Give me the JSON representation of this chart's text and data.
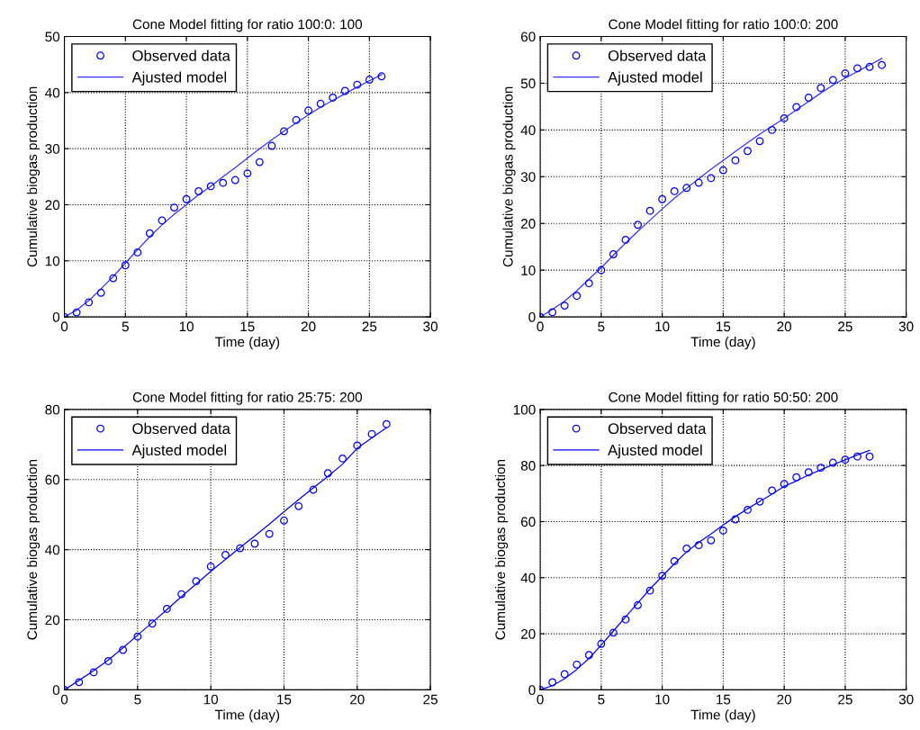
{
  "chart_data": [
    {
      "type": "scatter",
      "title": "Cone Model fitting for ratio 100:0: 100",
      "xlabel": "Time (day)",
      "ylabel": "Cumulative biogas production",
      "xlim": [
        0,
        30
      ],
      "xticks": [
        0,
        5,
        10,
        15,
        20,
        25,
        30
      ],
      "ylim": [
        0,
        50
      ],
      "yticks": [
        0,
        10,
        20,
        30,
        40,
        50
      ],
      "grid": true,
      "legend": "top left",
      "series": [
        {
          "name": "Observed data",
          "marker": "circle",
          "color": "#0000ff",
          "x": [
            0,
            1,
            2,
            3,
            4,
            5,
            6,
            7,
            8,
            9,
            10,
            11,
            12,
            13,
            14,
            15,
            16,
            17,
            18,
            19,
            20,
            21,
            22,
            23,
            24,
            25,
            26
          ],
          "values": [
            0,
            0.8,
            2.6,
            4.3,
            6.9,
            9.2,
            11.5,
            14.9,
            17.2,
            19.5,
            21.0,
            22.4,
            23.3,
            23.9,
            24.4,
            25.6,
            27.6,
            30.5,
            33.1,
            35.1,
            36.8,
            38.0,
            39.1,
            40.3,
            41.4,
            42.3,
            42.9
          ]
        },
        {
          "name": "Ajusted model",
          "type": "line",
          "line_style": "solid",
          "color": "#3333ff",
          "x": [
            0,
            1,
            2,
            3,
            4,
            5,
            6,
            7,
            8,
            9,
            10,
            11,
            12,
            13,
            14,
            15,
            16,
            17,
            18,
            19,
            20,
            21,
            22,
            23,
            24,
            25,
            26
          ],
          "values": [
            0,
            1.2,
            2.9,
            5.0,
            7.2,
            9.6,
            12.0,
            14.3,
            16.4,
            18.3,
            20.0,
            21.8,
            23.3,
            25.0,
            26.6,
            28.3,
            30.0,
            31.6,
            33.1,
            34.6,
            36.0,
            37.4,
            38.6,
            39.8,
            41.0,
            42.1,
            43.2
          ]
        }
      ]
    },
    {
      "type": "scatter",
      "title": "Cone Model fitting for ratio 100:0: 200",
      "xlabel": "Time (day)",
      "ylabel": "Cumulative biogas production",
      "xlim": [
        0,
        30
      ],
      "xticks": [
        0,
        5,
        10,
        15,
        20,
        25,
        30
      ],
      "ylim": [
        0,
        60
      ],
      "yticks": [
        0,
        10,
        20,
        30,
        40,
        50,
        60
      ],
      "grid": true,
      "legend": "top left",
      "series": [
        {
          "name": "Observed data",
          "marker": "circle",
          "color": "#0000ff",
          "x": [
            0,
            1,
            2,
            3,
            4,
            5,
            6,
            7,
            8,
            9,
            10,
            11,
            12,
            13,
            14,
            15,
            16,
            17,
            18,
            19,
            20,
            21,
            22,
            23,
            24,
            25,
            26,
            27,
            28
          ],
          "values": [
            0,
            1.0,
            2.4,
            4.5,
            7.2,
            10.0,
            13.4,
            16.5,
            19.7,
            22.7,
            25.2,
            26.9,
            27.6,
            28.7,
            29.7,
            31.4,
            33.5,
            35.5,
            37.6,
            40.0,
            42.5,
            44.9,
            46.9,
            49.0,
            50.7,
            52.1,
            53.2,
            53.5,
            53.9
          ]
        },
        {
          "name": "Ajusted model",
          "type": "line",
          "line_style": "solid",
          "color": "#3333ff",
          "x": [
            0,
            1,
            2,
            3,
            4,
            5,
            6,
            7,
            8,
            9,
            10,
            11,
            12,
            13,
            14,
            15,
            16,
            17,
            18,
            19,
            20,
            21,
            22,
            23,
            24,
            25,
            26,
            27,
            28
          ],
          "values": [
            0,
            1.6,
            3.4,
            5.6,
            8.1,
            10.5,
            13.2,
            15.8,
            18.3,
            20.7,
            23.1,
            25.4,
            27.5,
            29.6,
            31.6,
            33.5,
            35.4,
            37.3,
            39.1,
            40.8,
            42.5,
            44.3,
            46.1,
            47.9,
            49.6,
            51.1,
            52.5,
            53.9,
            55.3
          ]
        }
      ]
    },
    {
      "type": "scatter",
      "title": "Cone Model fitting for ratio 25:75: 200",
      "xlabel": "Time (day)",
      "ylabel": "Cumulative biogas production",
      "xlim": [
        0,
        25
      ],
      "xticks": [
        0,
        5,
        10,
        15,
        20,
        25
      ],
      "ylim": [
        0,
        80
      ],
      "yticks": [
        0,
        20,
        40,
        60,
        80
      ],
      "grid": true,
      "legend": "top left",
      "series": [
        {
          "name": "Observed data",
          "marker": "circle",
          "color": "#0000ff",
          "x": [
            0,
            1,
            2,
            3,
            4,
            5,
            6,
            7,
            8,
            9,
            10,
            11,
            12,
            13,
            14,
            15,
            16,
            17,
            18,
            19,
            20,
            21,
            22
          ],
          "values": [
            0,
            2.2,
            5.0,
            8.2,
            11.4,
            15.2,
            18.9,
            23.1,
            27.3,
            31.0,
            35.2,
            38.5,
            40.4,
            41.7,
            44.5,
            48.3,
            52.4,
            57.1,
            61.8,
            66.0,
            69.7,
            73.0,
            75.8
          ]
        },
        {
          "name": "Ajusted model",
          "type": "line",
          "line_style": "solid",
          "color": "#0000ff",
          "x": [
            0,
            1,
            2,
            3,
            4,
            5,
            6,
            7,
            8,
            9,
            10,
            11,
            12,
            13,
            14,
            15,
            16,
            17,
            18,
            19,
            20,
            21,
            22
          ],
          "values": [
            0,
            2.7,
            5.5,
            8.5,
            12.0,
            15.6,
            19.2,
            22.9,
            26.6,
            30.2,
            33.8,
            37.2,
            40.6,
            43.9,
            47.3,
            50.8,
            54.3,
            57.6,
            60.9,
            64.4,
            68.9,
            71.9,
            74.8
          ]
        }
      ]
    },
    {
      "type": "scatter",
      "title": "Cone Model fitting for ratio 50:50: 200",
      "xlabel": "Time (day)",
      "ylabel": "Cumulative biogas production",
      "xlim": [
        0,
        30
      ],
      "xticks": [
        0,
        5,
        10,
        15,
        20,
        25,
        30
      ],
      "ylim": [
        0,
        100
      ],
      "yticks": [
        0,
        20,
        40,
        60,
        80,
        100
      ],
      "grid": true,
      "legend": "top left",
      "series": [
        {
          "name": "Observed data",
          "marker": "circle",
          "color": "#0000ff",
          "x": [
            0,
            1,
            2,
            3,
            4,
            5,
            6,
            7,
            8,
            9,
            10,
            11,
            12,
            13,
            14,
            15,
            16,
            17,
            18,
            19,
            20,
            21,
            22,
            23,
            24,
            25,
            26,
            27
          ],
          "values": [
            0,
            2.7,
            5.6,
            9.0,
            12.4,
            16.4,
            20.4,
            25.1,
            30.2,
            35.4,
            40.7,
            45.9,
            50.4,
            51.6,
            53.3,
            56.8,
            60.8,
            64.2,
            67.1,
            71.1,
            73.4,
            75.8,
            77.6,
            79.2,
            81.0,
            82.1,
            83.2,
            83.2
          ]
        },
        {
          "name": "Ajusted model",
          "type": "line",
          "line_style": "solid",
          "color": "#0000ff",
          "x": [
            0,
            1,
            2,
            3,
            4,
            5,
            6,
            7,
            8,
            9,
            10,
            11,
            12,
            13,
            14,
            15,
            16,
            17,
            18,
            19,
            20,
            21,
            22,
            23,
            24,
            25,
            26,
            27
          ],
          "values": [
            0,
            1.5,
            4.0,
            7.3,
            11.2,
            16.0,
            21.0,
            26.0,
            31.0,
            36.0,
            40.5,
            45.0,
            49.2,
            52.6,
            55.6,
            58.8,
            61.8,
            64.6,
            67.2,
            69.8,
            72.6,
            74.5,
            76.6,
            78.5,
            80.3,
            82.0,
            83.8,
            85.4
          ]
        }
      ]
    }
  ]
}
